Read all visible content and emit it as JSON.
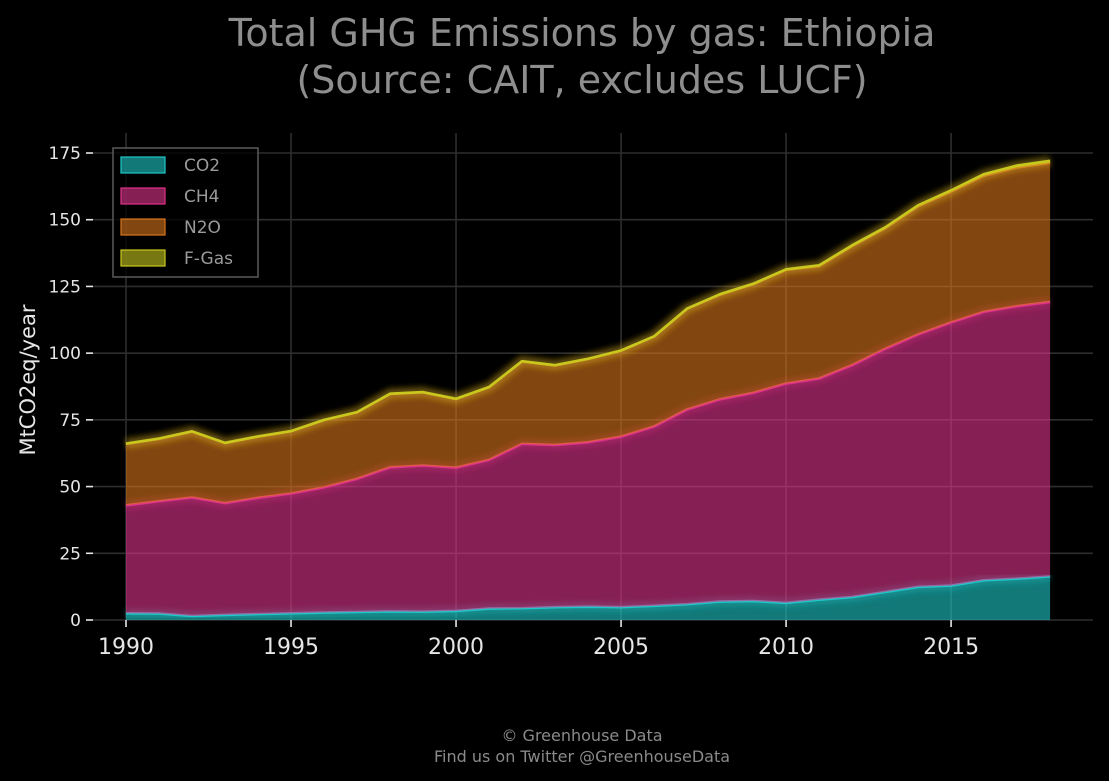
{
  "title_lines": [
    "Total GHG Emissions by gas: Ethiopia",
    "(Source: CAIT, excludes LUCF)"
  ],
  "footer_lines": [
    "© Greenhouse Data",
    "Find us on Twitter @GreenhouseData"
  ],
  "chart_data": {
    "type": "area",
    "stacked": true,
    "title": "Total GHG Emissions by gas: Ethiopia\n(Source: CAIT, excludes LUCF)",
    "xlabel": "",
    "ylabel": "MtCO2eq/year",
    "xlim": [
      1989,
      2019.3
    ],
    "ylim": [
      0,
      175
    ],
    "xticks": [
      1990,
      1995,
      2000,
      2005,
      2010,
      2015
    ],
    "yticks": [
      0,
      25,
      50,
      75,
      100,
      125,
      150,
      175
    ],
    "grid": true,
    "legend_position": "top-left",
    "x": [
      1990,
      1991,
      1992,
      1993,
      1994,
      1995,
      1996,
      1997,
      1998,
      1999,
      2000,
      2001,
      2002,
      2003,
      2004,
      2005,
      2006,
      2007,
      2008,
      2009,
      2010,
      2011,
      2012,
      2013,
      2014,
      2015,
      2016,
      2017,
      2018
    ],
    "series": [
      {
        "name": "CO2",
        "color": "#1ec8c8",
        "values": [
          2.5,
          2.4,
          1.5,
          1.9,
          2.2,
          2.5,
          2.8,
          3.0,
          3.2,
          3.1,
          3.4,
          4.3,
          4.4,
          4.8,
          5.0,
          4.8,
          5.3,
          5.9,
          6.9,
          7.1,
          6.4,
          7.6,
          8.6,
          10.5,
          12.4,
          12.9,
          14.9,
          15.5,
          16.3
        ]
      },
      {
        "name": "CH4",
        "color": "#e0338a",
        "values": [
          40.5,
          42.1,
          44.4,
          41.9,
          43.6,
          44.9,
          46.9,
          49.9,
          54.0,
          54.8,
          53.7,
          55.7,
          61.6,
          60.8,
          61.6,
          63.9,
          67.2,
          73.0,
          75.8,
          78.0,
          82.2,
          82.9,
          86.9,
          91.1,
          94.6,
          98.6,
          100.6,
          102.1,
          102.9
        ]
      },
      {
        "name": "N2O",
        "color": "#d9751a",
        "values": [
          23.0,
          23.4,
          24.7,
          22.5,
          22.9,
          23.3,
          25.2,
          24.9,
          27.5,
          27.4,
          25.7,
          27.2,
          30.9,
          29.8,
          31.2,
          32.2,
          33.7,
          37.7,
          39.2,
          40.7,
          42.6,
          42.1,
          44.6,
          45.2,
          48.0,
          49.0,
          51.0,
          52.0,
          52.1
        ]
      },
      {
        "name": "F-Gas",
        "color": "#c8c81e",
        "values": [
          0.1,
          0.1,
          0.1,
          0.1,
          0.1,
          0.1,
          0.1,
          0.1,
          0.1,
          0.1,
          0.1,
          0.1,
          0.1,
          0.1,
          0.1,
          0.1,
          0.1,
          0.1,
          0.2,
          0.2,
          0.2,
          0.3,
          0.3,
          0.3,
          0.4,
          0.5,
          0.6,
          0.7,
          0.8
        ]
      }
    ]
  }
}
